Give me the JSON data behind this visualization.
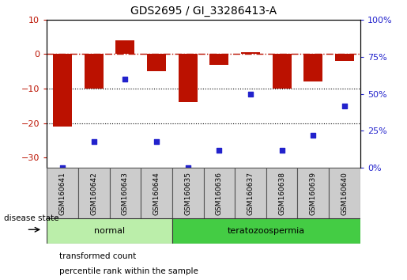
{
  "title": "GDS2695 / GI_33286413-A",
  "samples": [
    "GSM160641",
    "GSM160642",
    "GSM160643",
    "GSM160644",
    "GSM160635",
    "GSM160636",
    "GSM160637",
    "GSM160638",
    "GSM160639",
    "GSM160640"
  ],
  "bar_values": [
    -21,
    -10,
    4,
    -5,
    -14,
    -3,
    0.5,
    -10,
    -8,
    -2
  ],
  "dot_values_pct": [
    0,
    18,
    60,
    18,
    0,
    12,
    50,
    12,
    22,
    42
  ],
  "groups": [
    {
      "label": "normal",
      "start": 0,
      "end": 4
    },
    {
      "label": "teratozoospermia",
      "start": 4,
      "end": 10
    }
  ],
  "bar_color": "#bb1100",
  "dot_color": "#2222cc",
  "left_ylim": [
    -33,
    10
  ],
  "right_ylim": [
    0,
    100
  ],
  "left_yticks": [
    -30,
    -20,
    -10,
    0,
    10
  ],
  "right_yticks": [
    0,
    25,
    50,
    75,
    100
  ],
  "right_yticklabels": [
    "0%",
    "25%",
    "50%",
    "75%",
    "100%"
  ],
  "dotted_lines": [
    -10,
    -20
  ],
  "group_box_color": "#cccccc",
  "group_colors_light": "#bbeeaa",
  "group_colors_bright": "#44cc44",
  "legend_labels": [
    "transformed count",
    "percentile rank within the sample"
  ],
  "disease_state_label": "disease state"
}
